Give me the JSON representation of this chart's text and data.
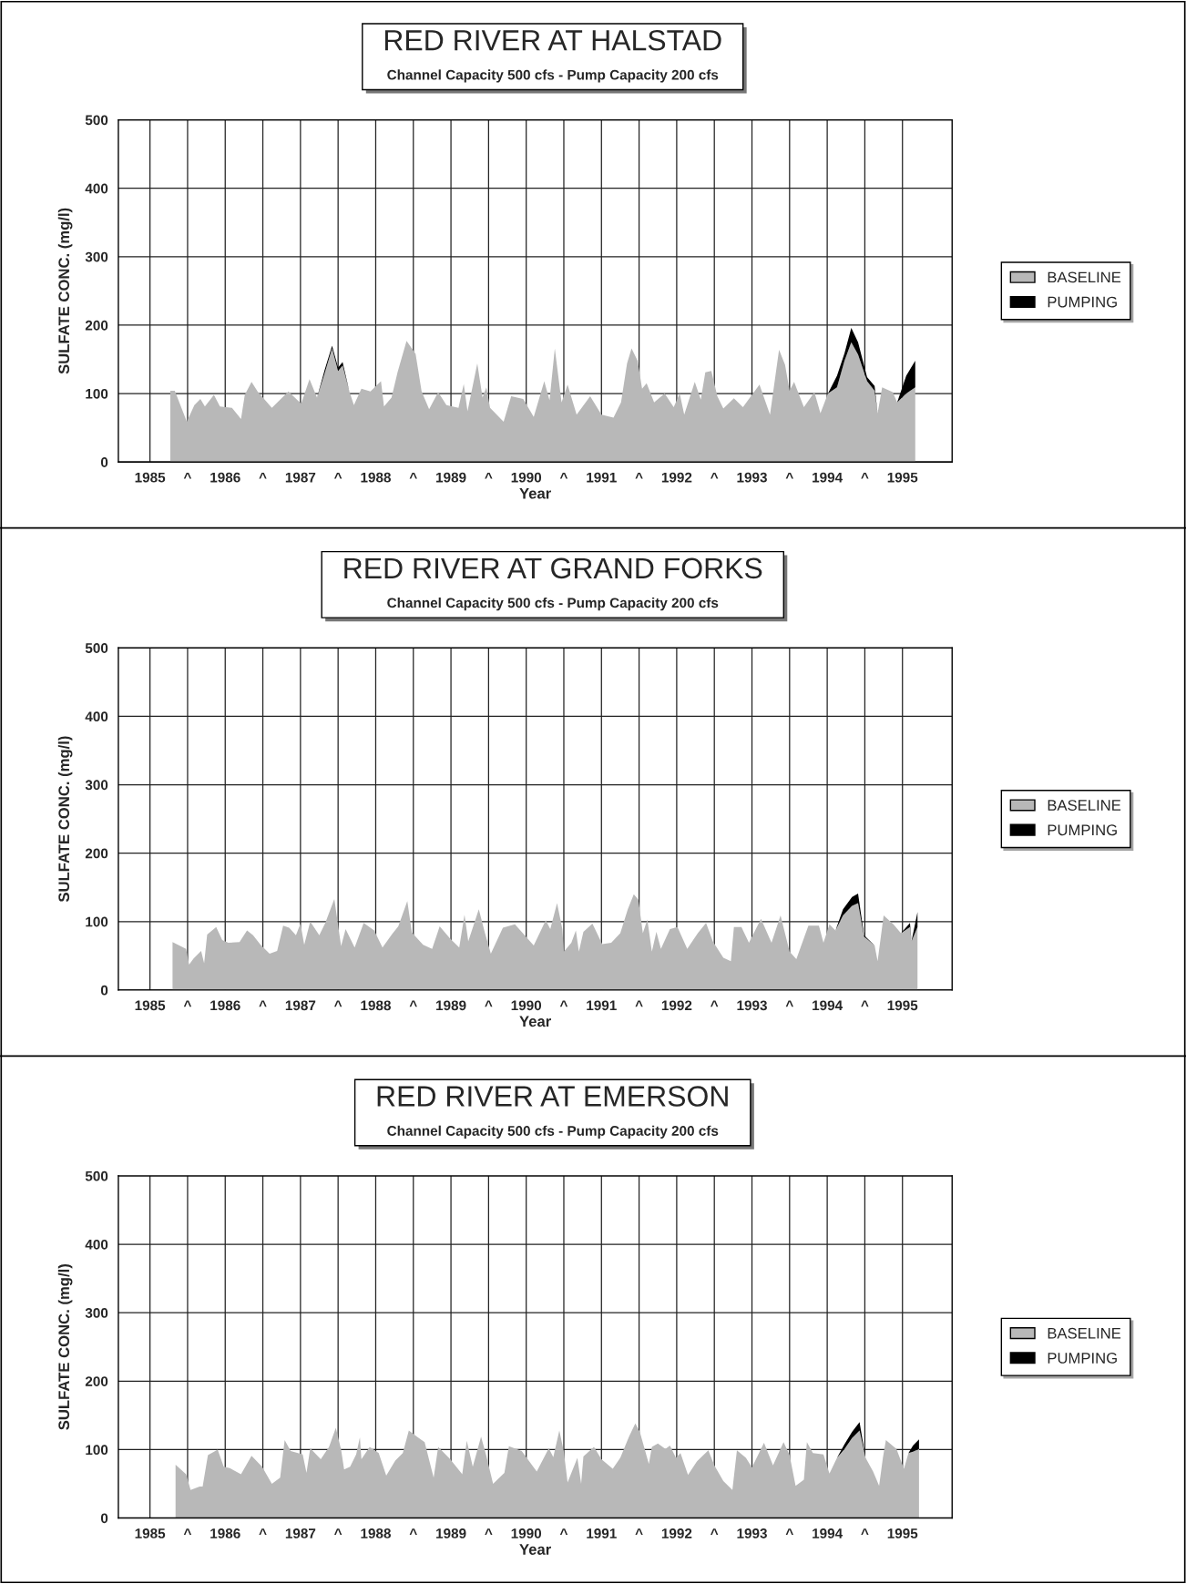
{
  "chart_data": [
    {
      "type": "area",
      "title": "RED RIVER AT HALSTAD",
      "subtitle": "Channel Capacity 500 cfs - Pump Capacity 200 cfs",
      "xlabel": "Year",
      "ylabel": "SULFATE CONC. (mg/l)",
      "stacked": true,
      "grid": true,
      "legend": "right",
      "xlim": [
        1984.58,
        1995.66
      ],
      "ylim": [
        0,
        500
      ],
      "yticks": [
        0,
        100,
        200,
        300,
        400,
        500
      ],
      "xticks": [
        1985,
        {
          "value": 1985.5,
          "label": "^"
        },
        1986,
        {
          "value": 1986.5,
          "label": "^"
        },
        1987,
        {
          "value": 1987.5,
          "label": "^"
        },
        1988,
        {
          "value": 1988.5,
          "label": "^"
        },
        1989,
        {
          "value": 1989.5,
          "label": "^"
        },
        1990,
        {
          "value": 1990.5,
          "label": "^"
        },
        1991,
        {
          "value": 1991.5,
          "label": "^"
        },
        1992,
        {
          "value": 1992.5,
          "label": "^"
        },
        1993,
        {
          "value": 1993.5,
          "label": "^"
        },
        1994,
        {
          "value": 1994.5,
          "label": "^"
        },
        1995
      ],
      "x": [
        1985.27,
        1985.33,
        1985.49,
        1985.59,
        1985.67,
        1985.73,
        1985.85,
        1985.93,
        1986.09,
        1986.21,
        1986.26,
        1986.35,
        1986.43,
        1986.62,
        1986.84,
        1987.01,
        1987.12,
        1987.22,
        1987.32,
        1987.42,
        1987.5,
        1987.56,
        1987.65,
        1987.71,
        1987.81,
        1987.93,
        1988.07,
        1988.11,
        1988.21,
        1988.29,
        1988.41,
        1988.53,
        1988.61,
        1988.71,
        1988.83,
        1988.94,
        1989.1,
        1989.17,
        1989.22,
        1989.35,
        1989.42,
        1989.47,
        1989.52,
        1989.7,
        1989.8,
        1989.96,
        1990.1,
        1990.24,
        1990.31,
        1990.38,
        1990.47,
        1990.55,
        1990.67,
        1990.85,
        1991.0,
        1991.16,
        1991.26,
        1991.34,
        1991.4,
        1991.48,
        1991.54,
        1991.6,
        1991.7,
        1991.84,
        1991.96,
        1992.04,
        1992.1,
        1992.24,
        1992.32,
        1992.38,
        1992.46,
        1992.54,
        1992.62,
        1992.76,
        1992.88,
        1993.1,
        1993.24,
        1993.36,
        1993.44,
        1993.5,
        1993.56,
        1993.69,
        1993.83,
        1993.91,
        1994.01,
        1994.13,
        1994.23,
        1994.32,
        1994.41,
        1994.53,
        1994.63,
        1994.67,
        1994.73,
        1994.87,
        1994.93,
        1995.05,
        1995.17
      ],
      "series": [
        {
          "name": "BASELINE",
          "color": "#b8b8b8",
          "values": [
            104,
            104,
            59,
            83,
            92,
            81,
            98,
            81,
            79,
            63,
            98,
            117,
            103,
            79,
            103,
            85,
            121,
            94,
            129,
            166,
            133,
            141,
            103,
            83,
            107,
            103,
            118,
            81,
            94,
            131,
            177,
            158,
            103,
            77,
            102,
            83,
            79,
            114,
            74,
            144,
            94,
            109,
            79,
            59,
            96,
            92,
            66,
            118,
            90,
            166,
            87,
            113,
            69,
            96,
            69,
            65,
            87,
            144,
            166,
            148,
            107,
            115,
            87,
            100,
            80,
            100,
            69,
            117,
            91,
            131,
            133,
            96,
            78,
            93,
            80,
            113,
            69,
            164,
            142,
            104,
            117,
            80,
            102,
            71,
            100,
            109,
            148,
            175,
            157,
            118,
            104,
            71,
            109,
            102,
            87,
            100,
            109
          ]
        },
        {
          "name": "PUMPING",
          "color": "#000000",
          "values": [
            0,
            0,
            0,
            0,
            0,
            0,
            0,
            0,
            0,
            0,
            0,
            0,
            0,
            0,
            0,
            0,
            0,
            0,
            5,
            4,
            5,
            5,
            0,
            0,
            0,
            0,
            0,
            0,
            0,
            0,
            0,
            0,
            0,
            0,
            0,
            0,
            0,
            0,
            0,
            0,
            0,
            0,
            0,
            0,
            0,
            0,
            0,
            0,
            0,
            0,
            0,
            0,
            0,
            0,
            0,
            0,
            0,
            0,
            0,
            0,
            0,
            0,
            0,
            0,
            0,
            0,
            0,
            0,
            0,
            0,
            0,
            0,
            0,
            0,
            0,
            0,
            0,
            0,
            0,
            0,
            0,
            0,
            0,
            0,
            0,
            17,
            11,
            21,
            18,
            6,
            7,
            0,
            0,
            0,
            0,
            26,
            39
          ]
        }
      ]
    },
    {
      "type": "area",
      "title": "RED RIVER AT GRAND FORKS",
      "subtitle": "Channel Capacity 500 cfs - Pump Capacity 200 cfs",
      "xlabel": "Year",
      "ylabel": "SULFATE CONC. (mg/l)",
      "stacked": true,
      "grid": true,
      "legend": "right",
      "xlim": [
        1984.58,
        1995.66
      ],
      "ylim": [
        0,
        500
      ],
      "yticks": [
        0,
        100,
        200,
        300,
        400,
        500
      ],
      "xticks": [
        1985,
        {
          "value": 1985.5,
          "label": "^"
        },
        1986,
        {
          "value": 1986.5,
          "label": "^"
        },
        1987,
        {
          "value": 1987.5,
          "label": "^"
        },
        1988,
        {
          "value": 1988.5,
          "label": "^"
        },
        1989,
        {
          "value": 1989.5,
          "label": "^"
        },
        1990,
        {
          "value": 1990.5,
          "label": "^"
        },
        1991,
        {
          "value": 1991.5,
          "label": "^"
        },
        1992,
        {
          "value": 1992.5,
          "label": "^"
        },
        1993,
        {
          "value": 1993.5,
          "label": "^"
        },
        1994,
        {
          "value": 1994.5,
          "label": "^"
        },
        1995
      ],
      "x": [
        1985.3,
        1985.48,
        1985.52,
        1985.58,
        1985.68,
        1985.72,
        1985.76,
        1985.88,
        1985.96,
        1986.04,
        1986.19,
        1986.29,
        1986.37,
        1986.47,
        1986.59,
        1986.69,
        1986.77,
        1986.85,
        1986.94,
        1987.0,
        1987.05,
        1987.13,
        1987.25,
        1987.33,
        1987.45,
        1987.54,
        1987.6,
        1987.72,
        1987.84,
        1987.98,
        1988.09,
        1988.22,
        1988.3,
        1988.42,
        1988.48,
        1988.63,
        1988.75,
        1988.85,
        1988.99,
        1989.11,
        1989.18,
        1989.23,
        1989.37,
        1989.45,
        1989.53,
        1989.69,
        1989.85,
        1990.1,
        1990.26,
        1990.32,
        1990.41,
        1990.48,
        1990.5,
        1990.6,
        1990.66,
        1990.7,
        1990.76,
        1990.88,
        1991.01,
        1991.13,
        1991.25,
        1991.35,
        1991.43,
        1991.49,
        1991.55,
        1991.61,
        1991.67,
        1991.73,
        1991.79,
        1991.91,
        1992.01,
        1992.14,
        1992.28,
        1992.39,
        1992.48,
        1992.62,
        1992.72,
        1992.76,
        1992.86,
        1992.96,
        1993.12,
        1993.26,
        1993.38,
        1993.5,
        1993.59,
        1993.75,
        1993.89,
        1993.95,
        1994.03,
        1994.11,
        1994.21,
        1994.33,
        1994.41,
        1994.49,
        1994.63,
        1994.67,
        1994.75,
        1994.88,
        1994.98,
        1995.1,
        1995.12,
        1995.2
      ],
      "series": [
        {
          "name": "BASELINE",
          "color": "#b8b8b8",
          "values": [
            70,
            60,
            37,
            46,
            57,
            39,
            81,
            92,
            73,
            69,
            70,
            87,
            80,
            66,
            53,
            57,
            94,
            91,
            80,
            97,
            66,
            100,
            80,
            98,
            133,
            64,
            89,
            62,
            98,
            87,
            62,
            82,
            93,
            130,
            84,
            66,
            60,
            93,
            75,
            62,
            110,
            71,
            118,
            84,
            53,
            91,
            96,
            65,
            102,
            89,
            127,
            89,
            56,
            69,
            87,
            56,
            85,
            97,
            67,
            69,
            83,
            118,
            140,
            132,
            83,
            103,
            56,
            85,
            60,
            89,
            92,
            60,
            83,
            98,
            71,
            47,
            42,
            92,
            92,
            69,
            104,
            69,
            109,
            56,
            45,
            94,
            94,
            69,
            96,
            87,
            109,
            123,
            127,
            78,
            65,
            42,
            109,
            96,
            83,
            92,
            71,
            92
          ]
        },
        {
          "name": "PUMPING",
          "color": "#000000",
          "values": [
            0,
            0,
            0,
            0,
            0,
            0,
            0,
            0,
            0,
            0,
            0,
            0,
            0,
            0,
            0,
            0,
            0,
            0,
            0,
            0,
            0,
            0,
            0,
            0,
            0,
            0,
            0,
            0,
            0,
            0,
            0,
            0,
            0,
            0,
            0,
            0,
            0,
            0,
            0,
            0,
            0,
            0,
            0,
            0,
            0,
            0,
            0,
            0,
            0,
            0,
            0,
            0,
            0,
            0,
            0,
            0,
            0,
            0,
            0,
            0,
            0,
            0,
            0,
            0,
            0,
            0,
            0,
            0,
            0,
            0,
            0,
            0,
            0,
            0,
            0,
            0,
            0,
            0,
            0,
            0,
            0,
            0,
            0,
            0,
            0,
            0,
            0,
            0,
            0,
            0,
            9,
            13,
            14,
            2,
            0,
            0,
            0,
            0,
            0,
            6,
            0,
            22
          ]
        }
      ]
    },
    {
      "type": "area",
      "title": "RED RIVER AT EMERSON",
      "subtitle": "Channel Capacity 500 cfs - Pump Capacity 200 cfs",
      "xlabel": "Year",
      "ylabel": "SULFATE CONC. (mg/l)",
      "stacked": true,
      "grid": true,
      "legend": "right",
      "xlim": [
        1984.58,
        1995.66
      ],
      "ylim": [
        0,
        500
      ],
      "yticks": [
        0,
        100,
        200,
        300,
        400,
        500
      ],
      "xticks": [
        1985,
        {
          "value": 1985.5,
          "label": "^"
        },
        1986,
        {
          "value": 1986.5,
          "label": "^"
        },
        1987,
        {
          "value": 1987.5,
          "label": "^"
        },
        1988,
        {
          "value": 1988.5,
          "label": "^"
        },
        1989,
        {
          "value": 1989.5,
          "label": "^"
        },
        1990,
        {
          "value": 1990.5,
          "label": "^"
        },
        1991,
        {
          "value": 1991.5,
          "label": "^"
        },
        1992,
        {
          "value": 1992.5,
          "label": "^"
        },
        1993,
        {
          "value": 1993.5,
          "label": "^"
        },
        1994,
        {
          "value": 1994.5,
          "label": "^"
        },
        1995
      ],
      "x": [
        1985.34,
        1985.48,
        1985.54,
        1985.66,
        1985.7,
        1985.77,
        1985.9,
        1985.98,
        1986.06,
        1986.21,
        1986.35,
        1986.49,
        1986.62,
        1986.73,
        1986.79,
        1986.87,
        1987.03,
        1987.08,
        1987.13,
        1987.27,
        1987.38,
        1987.47,
        1987.54,
        1987.58,
        1987.66,
        1987.74,
        1987.79,
        1987.81,
        1987.92,
        1988.04,
        1988.14,
        1988.26,
        1988.36,
        1988.44,
        1988.56,
        1988.65,
        1988.77,
        1988.83,
        1988.99,
        1989.15,
        1989.21,
        1989.29,
        1989.4,
        1989.47,
        1989.56,
        1989.71,
        1989.77,
        1989.94,
        1990.14,
        1990.3,
        1990.36,
        1990.44,
        1990.5,
        1990.55,
        1990.68,
        1990.73,
        1990.76,
        1990.9,
        1991.0,
        1991.15,
        1991.25,
        1991.37,
        1991.45,
        1991.51,
        1991.63,
        1991.67,
        1991.75,
        1991.85,
        1991.91,
        1991.99,
        1992.05,
        1992.15,
        1992.27,
        1992.42,
        1992.5,
        1992.62,
        1992.74,
        1992.8,
        1992.92,
        1993.0,
        1993.16,
        1993.28,
        1993.42,
        1993.5,
        1993.58,
        1993.69,
        1993.73,
        1993.81,
        1993.95,
        1994.03,
        1994.13,
        1994.23,
        1994.33,
        1994.43,
        1994.51,
        1994.61,
        1994.69,
        1994.74,
        1994.78,
        1994.92,
        1995.02,
        1995.08,
        1995.14,
        1995.22
      ],
      "series": [
        {
          "name": "BASELINE",
          "color": "#b8b8b8",
          "values": [
            78,
            64,
            41,
            46,
            46,
            92,
            100,
            75,
            73,
            64,
            91,
            75,
            50,
            59,
            114,
            98,
            93,
            66,
            102,
            86,
            104,
            132,
            100,
            71,
            75,
            93,
            118,
            86,
            104,
            95,
            62,
            84,
            95,
            128,
            118,
            111,
            59,
            104,
            86,
            64,
            113,
            75,
            119,
            91,
            50,
            66,
            105,
            98,
            68,
            102,
            89,
            128,
            97,
            52,
            88,
            50,
            90,
            104,
            86,
            72,
            88,
            120,
            138,
            126,
            79,
            104,
            109,
            101,
            106,
            88,
            95,
            63,
            83,
            99,
            77,
            54,
            41,
            99,
            88,
            74,
            110,
            77,
            111,
            92,
            47,
            56,
            111,
            95,
            93,
            65,
            88,
            101,
            117,
            128,
            88,
            68,
            47,
            88,
            114,
            101,
            72,
            95,
            97,
            101
          ]
        },
        {
          "name": "PUMPING",
          "color": "#000000",
          "values": [
            0,
            0,
            0,
            0,
            0,
            0,
            0,
            0,
            0,
            0,
            0,
            0,
            0,
            0,
            0,
            0,
            0,
            0,
            0,
            0,
            0,
            0,
            0,
            0,
            0,
            0,
            0,
            0,
            0,
            0,
            0,
            0,
            0,
            0,
            0,
            0,
            0,
            0,
            0,
            0,
            0,
            0,
            0,
            0,
            0,
            0,
            0,
            0,
            0,
            0,
            0,
            0,
            0,
            0,
            0,
            0,
            0,
            0,
            0,
            0,
            0,
            0,
            0,
            0,
            0,
            0,
            0,
            0,
            0,
            0,
            0,
            0,
            0,
            0,
            0,
            0,
            0,
            0,
            0,
            0,
            0,
            0,
            0,
            0,
            0,
            0,
            0,
            0,
            0,
            0,
            0,
            7,
            9,
            12,
            0,
            0,
            0,
            0,
            0,
            0,
            0,
            0,
            9,
            14
          ]
        }
      ]
    }
  ]
}
